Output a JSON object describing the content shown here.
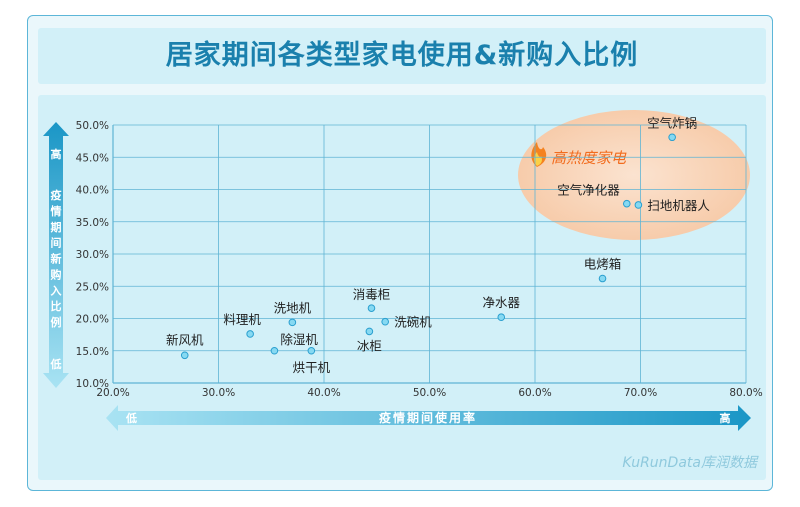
{
  "title": "居家期间各类型家电使用&新购入比例",
  "watermark": "KuRunData库润数据",
  "highlight_label": "高热度家电",
  "colors": {
    "title": "#1a80ad",
    "panel": "#d2f0f8",
    "grid": "#5fb4d4",
    "point_fill": "#86d9f2",
    "point_stroke": "#2a9fcf",
    "arrow": "#1ea0cc",
    "highlight_fill": "#f8d2b4",
    "highlight_text": "#f26c1e"
  },
  "chart_data": {
    "type": "scatter",
    "xlabel": "疫情期间使用率",
    "ylabel": "疫情期间新购入比例",
    "x_low": "低",
    "x_high": "高",
    "y_low": "低",
    "y_high": "高",
    "xlim": [
      20,
      80
    ],
    "ylim": [
      10,
      50
    ],
    "x_ticks": [
      "20.0%",
      "30.0%",
      "40.0%",
      "50.0%",
      "60.0%",
      "70.0%",
      "80.0%"
    ],
    "y_ticks": [
      "10.0%",
      "15.0%",
      "20.0%",
      "25.0%",
      "30.0%",
      "35.0%",
      "40.0%",
      "45.0%",
      "50.0%"
    ],
    "grid": true,
    "points": [
      {
        "label": "新风机",
        "x": 26.8,
        "y": 14.3
      },
      {
        "label": "料理机",
        "x": 33.0,
        "y": 17.6
      },
      {
        "label": "除湿机",
        "x": 35.3,
        "y": 15.0
      },
      {
        "label": "洗地机",
        "x": 37.0,
        "y": 19.4
      },
      {
        "label": "烘干机",
        "x": 38.8,
        "y": 15.0
      },
      {
        "label": "消毒柜",
        "x": 44.5,
        "y": 21.6
      },
      {
        "label": "冰柜",
        "x": 44.3,
        "y": 18.0
      },
      {
        "label": "洗碗机",
        "x": 45.8,
        "y": 19.5
      },
      {
        "label": "净水器",
        "x": 56.8,
        "y": 20.2
      },
      {
        "label": "电烤箱",
        "x": 66.4,
        "y": 26.2
      },
      {
        "label": "空气净化器",
        "x": 68.7,
        "y": 37.8
      },
      {
        "label": "扫地机器人",
        "x": 69.8,
        "y": 37.6
      },
      {
        "label": "空气炸锅",
        "x": 73.0,
        "y": 48.1
      }
    ]
  }
}
